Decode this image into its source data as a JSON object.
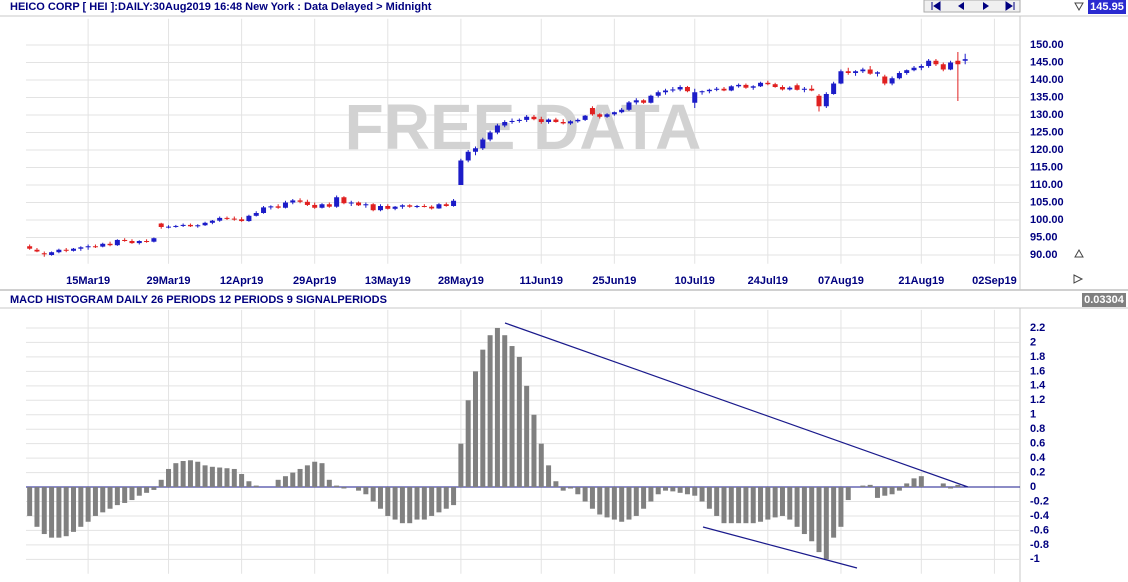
{
  "chart_data": [
    {
      "type": "candlestick",
      "title": "HEICO CORP [ HEI ]:DAILY:30Aug2019 16:48 New York : Data Delayed > Midnight",
      "watermark": "FREE DATA",
      "last_value": 145.95,
      "up_color": "#1c1cc8",
      "down_color": "#e02020",
      "grid": true,
      "xlim": [
        -0.5,
        135.5
      ],
      "xticks": [
        {
          "value": 8,
          "label": "15Mar19"
        },
        {
          "value": 19,
          "label": "29Mar19"
        },
        {
          "value": 29,
          "label": "12Apr19"
        },
        {
          "value": 39,
          "label": "29Apr19"
        },
        {
          "value": 49,
          "label": "13May19"
        },
        {
          "value": 59,
          "label": "28May19"
        },
        {
          "value": 70,
          "label": "11Jun19"
        },
        {
          "value": 80,
          "label": "25Jun19"
        },
        {
          "value": 91,
          "label": "10Jul19"
        },
        {
          "value": 101,
          "label": "24Jul19"
        },
        {
          "value": 111,
          "label": "07Aug19"
        },
        {
          "value": 122,
          "label": "21Aug19"
        },
        {
          "value": 132,
          "label": "02Sep19"
        }
      ],
      "ylim": [
        87.5,
        157.5
      ],
      "yticks": [
        {
          "value": 90,
          "label": "90.00"
        },
        {
          "value": 95,
          "label": "95.00"
        },
        {
          "value": 100,
          "label": "100.00"
        },
        {
          "value": 105,
          "label": "105.00"
        },
        {
          "value": 110,
          "label": "110.00"
        },
        {
          "value": 115,
          "label": "115.00"
        },
        {
          "value": 120,
          "label": "120.00"
        },
        {
          "value": 125,
          "label": "125.00"
        },
        {
          "value": 130,
          "label": "130.00"
        },
        {
          "value": 135,
          "label": "135.00"
        },
        {
          "value": 140,
          "label": "140.00"
        },
        {
          "value": 145,
          "label": "145.00"
        },
        {
          "value": 150,
          "label": "150.00"
        }
      ],
      "candles": [
        [
          92.5,
          93,
          91.5,
          91.8
        ],
        [
          91.5,
          92,
          90.8,
          91
        ],
        [
          90.5,
          91,
          89.5,
          90.2
        ],
        [
          90,
          91,
          89.8,
          90.8
        ],
        [
          90.8,
          91.8,
          90.5,
          91.5
        ],
        [
          91.5,
          92,
          90.8,
          91.2
        ],
        [
          91.2,
          92,
          91,
          91.8
        ],
        [
          91.8,
          92.5,
          91.2,
          92.2
        ],
        [
          92.2,
          93,
          91.5,
          92.5
        ],
        [
          92.5,
          93,
          92,
          92.4
        ],
        [
          92.4,
          93.5,
          92.2,
          93.2
        ],
        [
          93.2,
          93.8,
          92.5,
          92.8
        ],
        [
          92.8,
          94.5,
          92.6,
          94.3
        ],
        [
          94.3,
          94.8,
          93.8,
          94
        ],
        [
          94,
          94.5,
          93.2,
          93.4
        ],
        [
          93.4,
          94.2,
          93,
          94
        ],
        [
          94,
          94.5,
          93.5,
          93.8
        ],
        [
          93.8,
          95,
          93.6,
          94.8
        ],
        [
          99,
          99.2,
          97.5,
          98
        ],
        [
          98,
          98.5,
          97.6,
          98.1
        ],
        [
          98.1,
          98.6,
          97.8,
          98.3
        ],
        [
          98.3,
          99,
          98,
          98.6
        ],
        [
          98.6,
          99,
          98,
          98.2
        ],
        [
          98.2,
          98.8,
          97.8,
          98.5
        ],
        [
          98.5,
          99.5,
          98.3,
          99.2
        ],
        [
          99.2,
          100,
          98.8,
          99.8
        ],
        [
          99.8,
          101,
          99.5,
          100.6
        ],
        [
          100.6,
          101,
          100,
          100.4
        ],
        [
          100.4,
          101,
          99.8,
          100.2
        ],
        [
          100.2,
          100.8,
          99.5,
          99.7
        ],
        [
          99.7,
          101.5,
          99.5,
          101.2
        ],
        [
          101.2,
          102.5,
          101,
          102
        ],
        [
          102,
          104,
          101.8,
          103.6
        ],
        [
          103.6,
          104.2,
          103,
          103.9
        ],
        [
          103.9,
          104.5,
          103.2,
          103.5
        ],
        [
          103.5,
          105.5,
          103.3,
          105
        ],
        [
          105,
          106,
          104.5,
          105.6
        ],
        [
          105.6,
          106.2,
          104.8,
          105.2
        ],
        [
          105.2,
          105.8,
          104,
          104.3
        ],
        [
          104.3,
          105,
          103.2,
          103.5
        ],
        [
          103.5,
          104.8,
          103.3,
          104.5
        ],
        [
          104.5,
          105,
          103.5,
          103.8
        ],
        [
          103.8,
          107,
          103.5,
          106.5
        ],
        [
          106.5,
          106.8,
          104.5,
          104.8
        ],
        [
          104.8,
          105.5,
          104,
          105
        ],
        [
          105,
          105.3,
          104,
          104.2
        ],
        [
          104.2,
          105,
          103.5,
          104.5
        ],
        [
          104.5,
          104.8,
          102.5,
          102.8
        ],
        [
          102.8,
          104.5,
          102.5,
          104
        ],
        [
          104,
          104.5,
          103,
          103.2
        ],
        [
          103.2,
          104,
          102.8,
          103.8
        ],
        [
          103.8,
          104.5,
          103.2,
          104.2
        ],
        [
          104.2,
          104.5,
          103.5,
          103.8
        ],
        [
          103.8,
          104.3,
          103.4,
          104
        ],
        [
          104,
          104.5,
          103.6,
          103.8
        ],
        [
          103.8,
          104.2,
          103,
          103.3
        ],
        [
          103.3,
          104.8,
          103.2,
          104.5
        ],
        [
          104.5,
          105,
          103.8,
          104
        ],
        [
          104,
          106,
          103.8,
          105.5
        ],
        [
          110,
          117.5,
          110,
          117
        ],
        [
          117,
          120,
          116.5,
          119.5
        ],
        [
          119.5,
          121,
          118.5,
          120.5
        ],
        [
          120.5,
          123.5,
          120,
          123
        ],
        [
          123,
          125.5,
          122.5,
          125
        ],
        [
          125,
          127.5,
          124.5,
          127
        ],
        [
          127,
          128.5,
          126.5,
          128
        ],
        [
          128,
          129,
          127.5,
          128.3
        ],
        [
          128.3,
          129,
          127.8,
          128.6
        ],
        [
          128.6,
          130,
          128,
          129.5
        ],
        [
          129.5,
          130,
          128.5,
          128.8
        ],
        [
          128.8,
          129.5,
          127.5,
          128
        ],
        [
          128,
          129,
          127.5,
          128.7
        ],
        [
          128.7,
          129.2,
          127.8,
          128
        ],
        [
          128,
          128.8,
          127.3,
          127.6
        ],
        [
          127.6,
          128.5,
          127.2,
          128.2
        ],
        [
          128.2,
          129,
          127.8,
          128.6
        ],
        [
          128.6,
          130,
          128.3,
          129.8
        ],
        [
          132,
          132.5,
          129.8,
          130.2
        ],
        [
          130.2,
          130.5,
          129,
          129.5
        ],
        [
          129.5,
          130.5,
          129.2,
          130.2
        ],
        [
          130.2,
          131,
          129.8,
          130.8
        ],
        [
          130.8,
          132,
          130.5,
          131.5
        ],
        [
          131.5,
          134,
          131.2,
          133.6
        ],
        [
          133.6,
          134.8,
          133,
          134.2
        ],
        [
          134.2,
          134.5,
          133.2,
          133.5
        ],
        [
          133.5,
          135.8,
          133.3,
          135.5
        ],
        [
          135.5,
          137,
          135,
          136.5
        ],
        [
          136.5,
          137.5,
          135.8,
          137
        ],
        [
          137,
          138,
          136.5,
          137.3
        ],
        [
          137.3,
          138.5,
          136.8,
          138
        ],
        [
          138,
          138.3,
          136.5,
          136.8
        ],
        [
          133.5,
          137.5,
          132,
          136.5
        ],
        [
          136.5,
          137,
          135.8,
          136.8
        ],
        [
          136.8,
          137.5,
          136.2,
          137.2
        ],
        [
          137.2,
          138,
          136.8,
          137.5
        ],
        [
          137.5,
          138,
          136.8,
          137
        ],
        [
          137,
          138.5,
          136.8,
          138.2
        ],
        [
          138.2,
          139,
          137.8,
          138.6
        ],
        [
          138.6,
          139,
          137.5,
          137.8
        ],
        [
          137.8,
          138.5,
          137.2,
          138.2
        ],
        [
          138.2,
          139.5,
          138,
          139.2
        ],
        [
          139.2,
          139.8,
          138.5,
          138.8
        ],
        [
          138.8,
          139.2,
          137.8,
          138
        ],
        [
          138,
          138.5,
          137,
          137.3
        ],
        [
          137.3,
          138.2,
          137,
          137.8
        ],
        [
          138.5,
          139,
          137,
          137.2
        ],
        [
          137.2,
          138,
          136.5,
          137.5
        ],
        [
          137.5,
          138.5,
          136.8,
          137
        ],
        [
          135.5,
          136,
          131,
          132.5
        ],
        [
          132.5,
          136.5,
          132,
          136
        ],
        [
          136,
          139.5,
          135.8,
          139
        ],
        [
          139,
          143,
          138.8,
          142.5
        ],
        [
          142.5,
          143.5,
          141.5,
          142
        ],
        [
          142,
          142.8,
          141.2,
          142.5
        ],
        [
          142.5,
          143.5,
          142,
          143
        ],
        [
          143,
          144,
          141.5,
          141.8
        ],
        [
          141.8,
          142.5,
          141,
          142.2
        ],
        [
          141,
          141.5,
          138.5,
          139
        ],
        [
          139,
          141,
          138.5,
          140.5
        ],
        [
          140.5,
          142.5,
          140.2,
          142
        ],
        [
          142,
          143,
          141.5,
          142.8
        ],
        [
          142.8,
          144,
          142.5,
          143.5
        ],
        [
          143.5,
          144.5,
          142.8,
          144
        ],
        [
          144,
          146,
          143.5,
          145.5
        ],
        [
          145.5,
          146,
          144,
          144.5
        ],
        [
          144.5,
          145,
          142.5,
          143
        ],
        [
          143,
          145.5,
          142.8,
          145
        ],
        [
          145.5,
          148,
          134,
          144.5
        ],
        [
          145.5,
          147.5,
          144.5,
          145.95
        ]
      ]
    },
    {
      "type": "bar",
      "title": "MACD HISTOGRAM DAILY 26 PERIODS 12 PERIODS 9 SIGNALPERIODS",
      "last_value": 0.03304,
      "color": "#808080",
      "grid": true,
      "xlim": [
        -0.5,
        135.5
      ],
      "ylim": [
        -1.2,
        2.45
      ],
      "yticks": [
        -1,
        -0.8,
        -0.6,
        -0.4,
        -0.2,
        0,
        0.2,
        0.4,
        0.6,
        0.8,
        1,
        1.2,
        1.4,
        1.6,
        1.8,
        2,
        2.2
      ],
      "values": [
        -0.4,
        -0.55,
        -0.65,
        -0.7,
        -0.7,
        -0.68,
        -0.62,
        -0.55,
        -0.48,
        -0.4,
        -0.35,
        -0.3,
        -0.25,
        -0.22,
        -0.18,
        -0.12,
        -0.08,
        -0.04,
        0.1,
        0.25,
        0.33,
        0.36,
        0.37,
        0.35,
        0.3,
        0.28,
        0.27,
        0.26,
        0.25,
        0.18,
        0.08,
        0.02,
        0,
        0,
        0.1,
        0.15,
        0.2,
        0.25,
        0.3,
        0.35,
        0.33,
        0.1,
        0.02,
        -0.02,
        0,
        -0.05,
        -0.1,
        -0.2,
        -0.3,
        -0.4,
        -0.45,
        -0.5,
        -0.5,
        -0.45,
        -0.45,
        -0.4,
        -0.35,
        -0.3,
        -0.25,
        0.6,
        1.2,
        1.6,
        1.9,
        2.1,
        2.2,
        2.1,
        1.95,
        1.8,
        1.4,
        1.0,
        0.6,
        0.3,
        0.08,
        -0.05,
        -0.02,
        -0.1,
        -0.2,
        -0.3,
        -0.38,
        -0.42,
        -0.45,
        -0.48,
        -0.45,
        -0.4,
        -0.3,
        -0.2,
        -0.1,
        -0.05,
        -0.06,
        -0.08,
        -0.1,
        -0.12,
        -0.2,
        -0.3,
        -0.4,
        -0.5,
        -0.5,
        -0.5,
        -0.5,
        -0.5,
        -0.48,
        -0.45,
        -0.42,
        -0.4,
        -0.45,
        -0.55,
        -0.65,
        -0.75,
        -0.9,
        -1.0,
        -0.7,
        -0.55,
        -0.18,
        0,
        0.02,
        0.03,
        -0.15,
        -0.12,
        -0.1,
        -0.05,
        0.05,
        0.12,
        0.15,
        0,
        0,
        0.05,
        -0.02,
        0.03
      ]
    }
  ]
}
